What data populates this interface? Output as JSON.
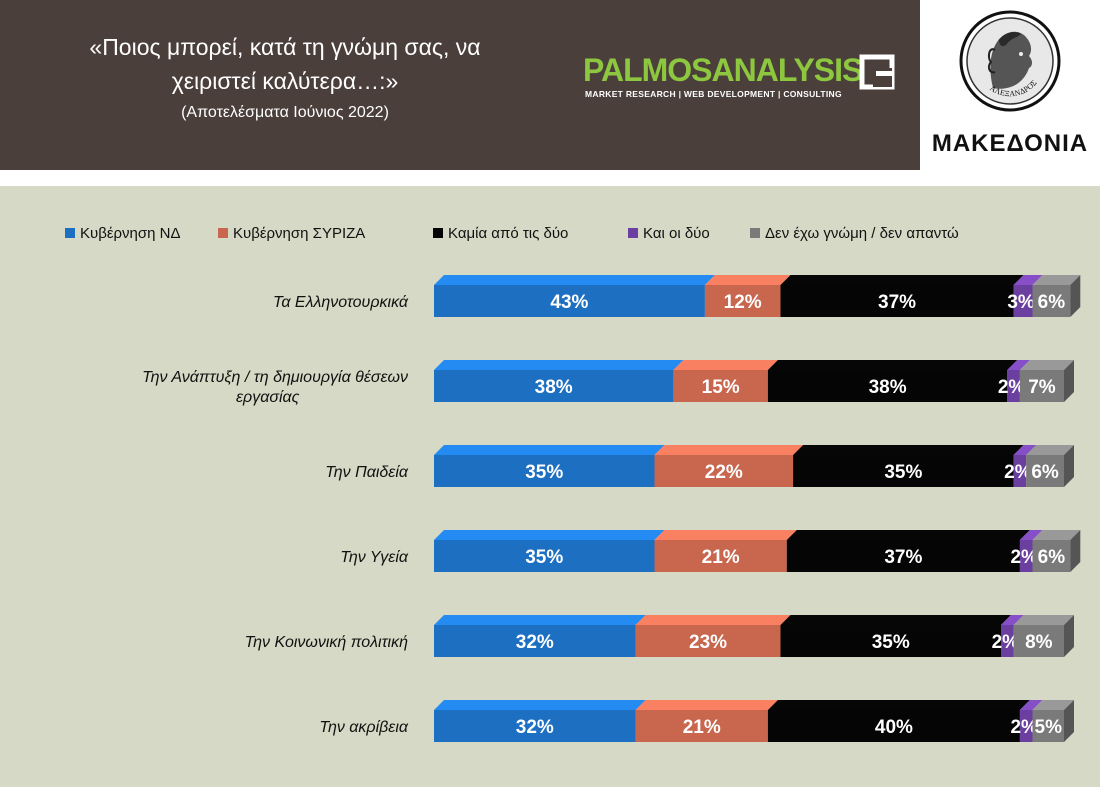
{
  "header": {
    "title_line1": "«Ποιος μπορεί, κατά τη γνώμη σας, να",
    "title_line2": "χειριστεί καλύτερα…:»",
    "subtitle": "(Αποτελέσματα Ιούνιος 2022)",
    "colors": {
      "background": "#4a3f3b",
      "text": "#ffffff"
    }
  },
  "logos": {
    "palmos": {
      "part1": "PALMOS",
      "part2": "ANALYSIS",
      "tagline": "MARKET RESEARCH | WEB DEVELOPMENT | CONSULTING",
      "color": "#8dc63f"
    },
    "makedonia": {
      "label": "ΜΑΚΕΔΟΝΙΑ",
      "coin_text": "ΑΛΕΞΑΝΔΡΟΣ"
    }
  },
  "chart_data": {
    "type": "bar",
    "orientation": "horizontal",
    "stacked": true,
    "legend_position": "top",
    "grid": false,
    "categories": [
      "Τα Ελληνοτουρκικά",
      "Την Ανάπτυξη / τη δημιουργία θέσεων εργασίας",
      "Την Παιδεία",
      "Την Υγεία",
      "Την Κοινωνική πολιτική",
      "Την ακρίβεια"
    ],
    "series": [
      {
        "name": "Κυβέρνηση ΝΔ",
        "color": "#1d6fc2",
        "values": [
          43,
          38,
          35,
          35,
          32,
          32
        ],
        "labels": [
          "43%",
          "38%",
          "35%",
          "35%",
          "32%",
          "32%"
        ]
      },
      {
        "name": "Κυβέρνηση ΣΥΡΙΖΑ",
        "color": "#c8664e",
        "values": [
          12,
          15,
          22,
          21,
          23,
          21
        ],
        "labels": [
          "12%",
          "15%",
          "22%",
          "21%",
          "23%",
          "21%"
        ]
      },
      {
        "name": "Καμία από τις δύο",
        "color": "#050505",
        "values": [
          37,
          38,
          35,
          37,
          35,
          40
        ],
        "labels": [
          "37%",
          "38%",
          "35%",
          "37%",
          "35%",
          "40%"
        ]
      },
      {
        "name": "Και οι δύο",
        "color": "#6b3fa0",
        "values": [
          3,
          2,
          2,
          2,
          2,
          2
        ],
        "labels": [
          "3%",
          "2%",
          "2%",
          "2%",
          "2%",
          "2%"
        ]
      },
      {
        "name": "Δεν έχω γνώμη / δεν απαντώ",
        "color": "#7a7a7a",
        "values": [
          6,
          7,
          6,
          6,
          8,
          5
        ],
        "labels": [
          "6%",
          "7%",
          "6%",
          "6%",
          "8%",
          "5%"
        ]
      }
    ],
    "xlim": [
      0,
      100
    ]
  }
}
